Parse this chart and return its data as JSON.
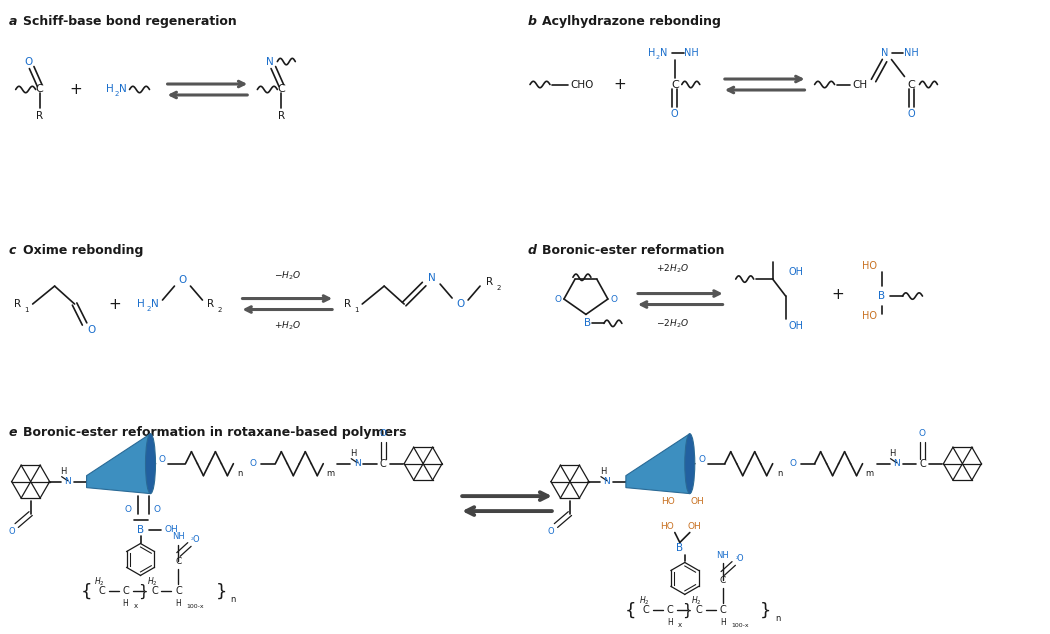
{
  "bg_color": "#ffffff",
  "chem_color": "#1a1a1a",
  "heteroatom_color": "#1a6ecc",
  "highlight_color": "#c87020",
  "fig_width": 10.5,
  "fig_height": 6.34,
  "dpi": 100,
  "sections": {
    "a_label": "a",
    "a_title": "Schiff-base bond regeneration",
    "b_label": "b",
    "b_title": "Acylhydrazone rebonding",
    "c_label": "c",
    "c_title": "Oxime rebonding",
    "d_label": "d",
    "d_title": "Boronic-ester reformation",
    "e_label": "e",
    "e_title": "Boronic-ester reformation in rotaxane-based polymers"
  },
  "cone_color": "#3d8fc0",
  "cone_edge_color": "#2a6a96",
  "cone_dark_color": "#2260a0"
}
